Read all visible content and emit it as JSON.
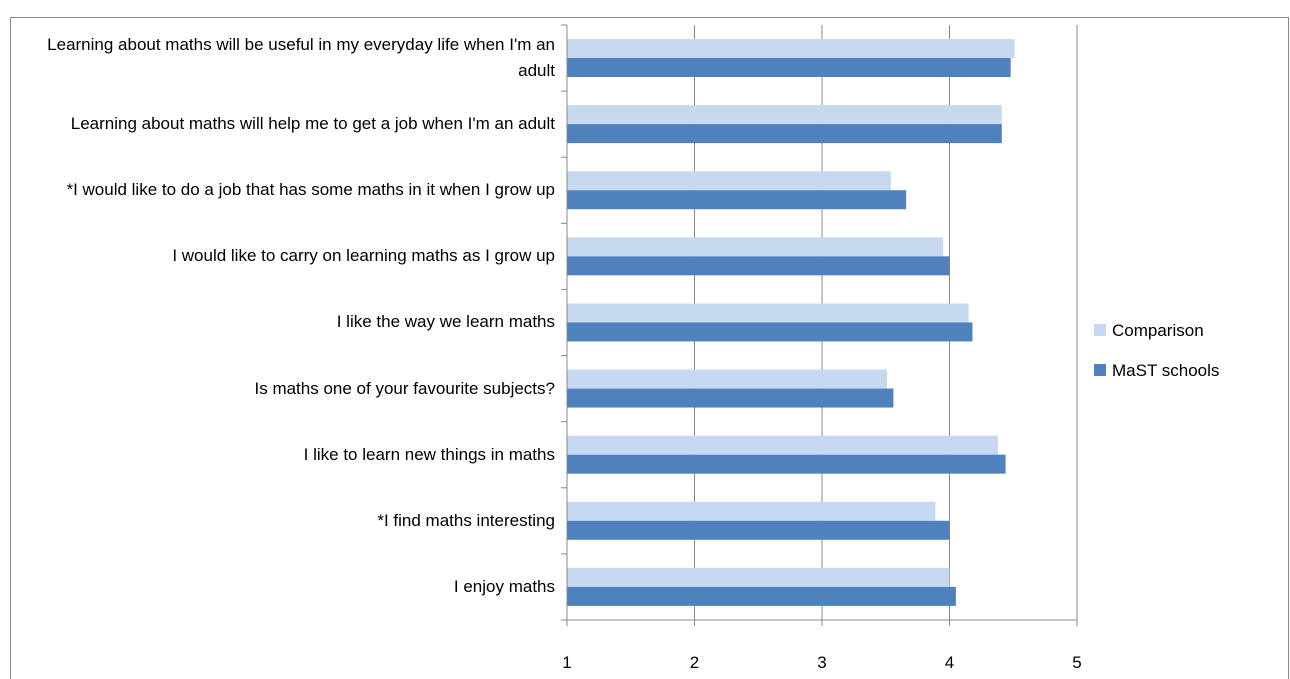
{
  "chart_data": {
    "type": "barh",
    "categories": [
      "Learning about maths will be useful in my everyday life when I'm an adult",
      "Learning about maths will help me to get a job when I'm an adult",
      "*I would like to do a job that has some maths in it when I grow up",
      "I would like to carry on learning maths as I grow up",
      "I like the way we learn maths",
      "Is maths one of your favourite subjects?",
      "I like to learn new things in maths",
      "*I find maths interesting",
      "I enjoy maths"
    ],
    "series": [
      {
        "name": "Comparison",
        "color": "#c6d9f1",
        "values": [
          4.51,
          4.41,
          3.54,
          3.95,
          4.15,
          3.51,
          4.38,
          3.89,
          4.0
        ]
      },
      {
        "name": "MaST schools",
        "color": "#4f81bd",
        "values": [
          4.48,
          4.41,
          3.66,
          4.0,
          4.18,
          3.56,
          4.44,
          4.0,
          4.05
        ]
      }
    ],
    "xlim": [
      1,
      5
    ],
    "xticks": [
      1,
      2,
      3,
      4,
      5
    ],
    "grid": true,
    "legend": "right"
  }
}
